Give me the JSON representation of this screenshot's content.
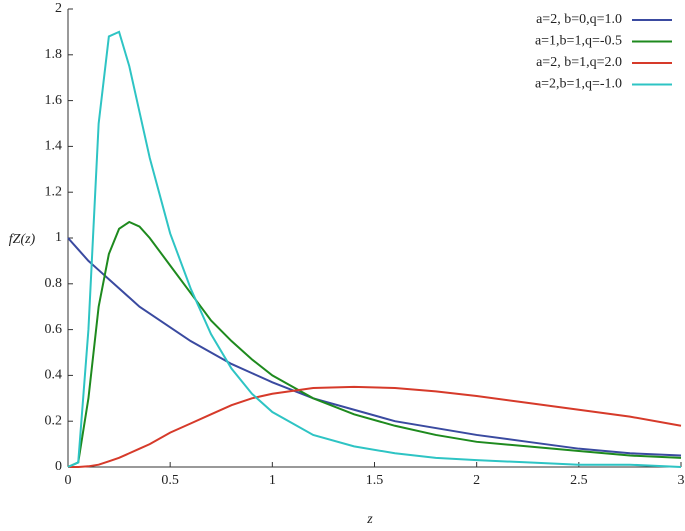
{
  "chart_data": {
    "type": "line",
    "x_label": "z",
    "y_label": "fZ(z)",
    "x": [
      0,
      0.05,
      0.1,
      0.15,
      0.2,
      0.25,
      0.3,
      0.35,
      0.4,
      0.5,
      0.6,
      0.7,
      0.8,
      0.9,
      1.0,
      1.2,
      1.4,
      1.6,
      1.8,
      2.0,
      2.25,
      2.5,
      2.75,
      3.0
    ],
    "series": [
      {
        "name": "a=2, b=0,q=1.0",
        "color": "#3a4aa0",
        "values": [
          1,
          0.95,
          0.9,
          0.86,
          0.82,
          0.78,
          0.74,
          0.7,
          0.67,
          0.61,
          0.55,
          0.5,
          0.45,
          0.41,
          0.37,
          0.3,
          0.25,
          0.2,
          0.17,
          0.14,
          0.11,
          0.08,
          0.06,
          0.05
        ]
      },
      {
        "name": "a=1,b=1,q=-0.5",
        "color": "#1e8a1e",
        "values": [
          0,
          0.02,
          0.3,
          0.7,
          0.93,
          1.04,
          1.07,
          1.05,
          1.0,
          0.88,
          0.76,
          0.64,
          0.55,
          0.47,
          0.4,
          0.3,
          0.23,
          0.18,
          0.14,
          0.11,
          0.09,
          0.07,
          0.05,
          0.04
        ]
      },
      {
        "name": "a=2, b=1,q=2.0",
        "color": "#d63a2a",
        "values": [
          0,
          0,
          0.003,
          0.01,
          0.025,
          0.04,
          0.06,
          0.08,
          0.1,
          0.15,
          0.19,
          0.23,
          0.27,
          0.3,
          0.32,
          0.345,
          0.35,
          0.345,
          0.33,
          0.31,
          0.28,
          0.25,
          0.22,
          0.18
        ]
      },
      {
        "name": "a=2,b=1,q=-1.0",
        "color": "#2ec4c4",
        "values": [
          0,
          0.02,
          0.6,
          1.5,
          1.88,
          1.9,
          1.75,
          1.55,
          1.35,
          1.02,
          0.78,
          0.58,
          0.43,
          0.32,
          0.24,
          0.14,
          0.09,
          0.06,
          0.04,
          0.03,
          0.02,
          0.01,
          0.01,
          0
        ]
      }
    ],
    "xlim": [
      0,
      3
    ],
    "xticks": [
      0,
      0.5,
      1,
      1.5,
      2,
      2.5,
      3
    ],
    "ylim": [
      0,
      2
    ],
    "yticks": [
      0,
      0.2,
      0.4,
      0.6,
      0.8,
      1,
      1.2,
      1.4,
      1.6,
      1.8,
      2
    ],
    "grid": false,
    "legend": "upper right"
  }
}
